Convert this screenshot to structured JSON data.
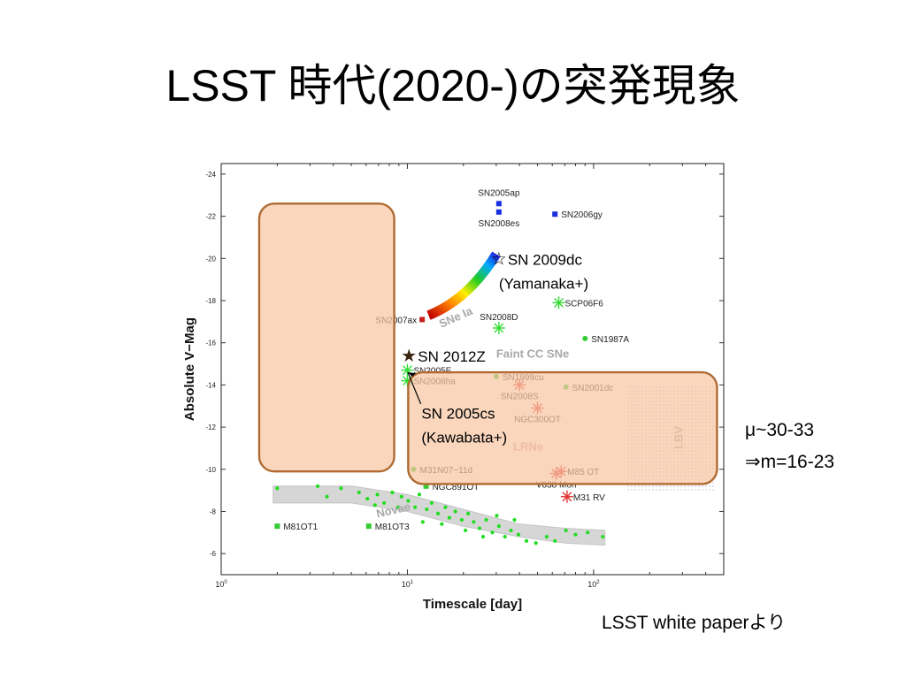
{
  "slide": {
    "title": "LSST 時代(2020-)の突発現象",
    "mu_line": "μ~30-33",
    "m_line": "⇒m=16-23",
    "credit": "LSST white paperより"
  },
  "chart_data": {
    "type": "scatter",
    "xlabel": "Timescale [day]",
    "ylabel": "Absolute V−Mag",
    "x_scale": "log",
    "xlim": [
      1,
      500
    ],
    "ylim": [
      -24.5,
      -5
    ],
    "y_inverted": true,
    "x_ticks": [
      1,
      10,
      100
    ],
    "x_tick_labels": [
      "10",
      "10",
      "10"
    ],
    "x_tick_exponents": [
      "0",
      "1",
      "2"
    ],
    "y_ticks": [
      -24,
      -22,
      -20,
      -18,
      -16,
      -14,
      -12,
      -10,
      -8,
      -6
    ],
    "y_tick_labels": [
      "-24",
      "-22",
      "-20",
      "-18",
      "-16",
      "-14",
      "-12",
      "-10",
      "-8",
      "-6"
    ],
    "region_labels": {
      "snia": "SNe Ia",
      "faint_cc": "Faint CC SNe",
      "lrne": "LRNe",
      "lbv": "LBV",
      "novae": "Novae"
    },
    "snia_track": {
      "x_start": 13,
      "x_end": 30,
      "y_start": -17.3,
      "y_end": -20.2
    },
    "lbv_band": {
      "x_start": 150,
      "x_end": 450,
      "y_top": -14,
      "y_bottom": -9
    },
    "novae_band": {
      "upper": [
        [
          1.9,
          -9.2
        ],
        [
          5,
          -9.2
        ],
        [
          10,
          -8.8
        ],
        [
          20,
          -8.1
        ],
        [
          40,
          -7.4
        ],
        [
          70,
          -7.2
        ],
        [
          115,
          -7.1
        ]
      ],
      "lower": [
        [
          1.9,
          -8.4
        ],
        [
          5,
          -8.4
        ],
        [
          10,
          -8.0
        ],
        [
          20,
          -7.3
        ],
        [
          40,
          -6.8
        ],
        [
          70,
          -6.5
        ],
        [
          115,
          -6.4
        ]
      ]
    },
    "objects": [
      {
        "name": "SN2005ap",
        "x": 31,
        "y": -22.6,
        "marker": "square",
        "color": "#1a2ee0",
        "label_side": "above"
      },
      {
        "name": "SN2008es",
        "x": 31,
        "y": -22.2,
        "marker": "square",
        "color": "#1a2ee0",
        "label_side": "below"
      },
      {
        "name": "SN2006gy",
        "x": 62,
        "y": -22.1,
        "marker": "square",
        "color": "#1a2ee0",
        "label_side": "right"
      },
      {
        "name": "SN2007ax",
        "x": 12,
        "y": -17.1,
        "marker": "square",
        "color": "#c81e1e",
        "label_side": "left"
      },
      {
        "name": "SCP06F6",
        "x": 65,
        "y": -17.9,
        "marker": "star",
        "color": "#33dd33",
        "label_side": "right"
      },
      {
        "name": "SN2008D",
        "x": 31,
        "y": -16.7,
        "marker": "star",
        "color": "#33dd33",
        "label_side": "above"
      },
      {
        "name": "SN1987A",
        "x": 90,
        "y": -16.2,
        "marker": "dot",
        "color": "#33cc33",
        "label_side": "right"
      },
      {
        "name": "SN2005E",
        "x": 10,
        "y": -14.7,
        "marker": "star",
        "color": "#33dd33",
        "label_side": "right"
      },
      {
        "name": "SN2008ha",
        "x": 10,
        "y": -14.2,
        "marker": "star",
        "color": "#33dd33",
        "label_side": "right"
      },
      {
        "name": "SN1999cu",
        "x": 30,
        "y": -14.4,
        "marker": "dot",
        "color": "#33cc33",
        "label_side": "right"
      },
      {
        "name": "SN2001dc",
        "x": 71,
        "y": -13.9,
        "marker": "dot",
        "color": "#33cc33",
        "label_side": "right"
      },
      {
        "name": "SN2008S",
        "x": 40,
        "y": -14.0,
        "marker": "star",
        "color": "#e03030",
        "label_side": "below"
      },
      {
        "name": "NGC300OT",
        "x": 50,
        "y": -12.9,
        "marker": "star",
        "color": "#e03030",
        "label_side": "below"
      },
      {
        "name": "M31N07−11d",
        "x": 10.8,
        "y": -10.0,
        "marker": "dot",
        "color": "#33cc33",
        "label_side": "right"
      },
      {
        "name": "NGC891OT",
        "x": 12.6,
        "y": -9.2,
        "marker": "square",
        "color": "#33cc33",
        "label_side": "right"
      },
      {
        "name": "M85 OT",
        "x": 67,
        "y": -9.9,
        "marker": "star",
        "color": "#e03030",
        "label_side": "right"
      },
      {
        "name": "V838 Mon",
        "x": 63,
        "y": -9.8,
        "marker": "star",
        "color": "#e03030",
        "label_side": "below"
      },
      {
        "name": "M31 RV",
        "x": 72,
        "y": -8.7,
        "marker": "star",
        "color": "#e03030",
        "label_side": "right"
      },
      {
        "name": "M81OT1",
        "x": 2,
        "y": -7.3,
        "marker": "square",
        "color": "#33cc33",
        "label_side": "right"
      },
      {
        "name": "M81OT3",
        "x": 6.2,
        "y": -7.3,
        "marker": "square",
        "color": "#33cc33",
        "label_side": "right"
      }
    ],
    "novae_points": [
      [
        2.0,
        -9.1
      ],
      [
        3.3,
        -9.2
      ],
      [
        3.7,
        -8.7
      ],
      [
        4.4,
        -9.1
      ],
      [
        5.5,
        -8.9
      ],
      [
        6.1,
        -8.6
      ],
      [
        6.9,
        -8.8
      ],
      [
        7.5,
        -8.4
      ],
      [
        8.3,
        -8.9
      ],
      [
        9.3,
        -8.7
      ],
      [
        10.1,
        -8.5
      ],
      [
        11.0,
        -8.2
      ],
      [
        11.6,
        -8.8
      ],
      [
        12.7,
        -8.1
      ],
      [
        13.5,
        -8.4
      ],
      [
        14.6,
        -7.9
      ],
      [
        16.0,
        -8.2
      ],
      [
        16.8,
        -7.7
      ],
      [
        18.1,
        -8.0
      ],
      [
        19.6,
        -7.6
      ],
      [
        21.2,
        -7.9
      ],
      [
        22.7,
        -7.5
      ],
      [
        24.4,
        -7.2
      ],
      [
        26.5,
        -7.6
      ],
      [
        28.6,
        -7.0
      ],
      [
        31.0,
        -7.3
      ],
      [
        33.4,
        -6.8
      ],
      [
        36.0,
        -7.1
      ],
      [
        39.5,
        -6.9
      ],
      [
        43.6,
        -6.6
      ],
      [
        49.0,
        -6.5
      ],
      [
        56.0,
        -6.8
      ],
      [
        62.0,
        -6.6
      ],
      [
        71.0,
        -7.1
      ],
      [
        80.0,
        -6.9
      ],
      [
        93.0,
        -7.0
      ],
      [
        112.0,
        -6.8
      ],
      [
        6.7,
        -8.3
      ],
      [
        8.9,
        -8.2
      ],
      [
        12.1,
        -7.5
      ],
      [
        15.3,
        -7.4
      ],
      [
        20.5,
        -7.1
      ],
      [
        25.5,
        -6.8
      ],
      [
        30.2,
        -7.8
      ],
      [
        37.6,
        -7.6
      ]
    ],
    "highlight_boxes": [
      {
        "x_start": 1.6,
        "x_end": 8.5,
        "y_top": -22.6,
        "y_bottom": -9.9
      },
      {
        "x_start": 10.1,
        "x_end": 460,
        "y_top": -14.6,
        "y_bottom": -9.3
      }
    ],
    "annotations": [
      {
        "marker": "☆",
        "marker_color": "#000000",
        "text": "SN 2009dc",
        "text2": "(Yamanaka+)",
        "x": 31,
        "y": -20.0
      },
      {
        "marker": "★",
        "marker_color": "#3a2410",
        "text": "SN 2012Z",
        "text2": "",
        "x": 10.2,
        "y": -15.4
      },
      {
        "marker": "",
        "marker_color": "",
        "text": "SN 2005cs",
        "text2": "(Kawabata+)",
        "x": 11.9,
        "y": -12.7
      }
    ]
  }
}
